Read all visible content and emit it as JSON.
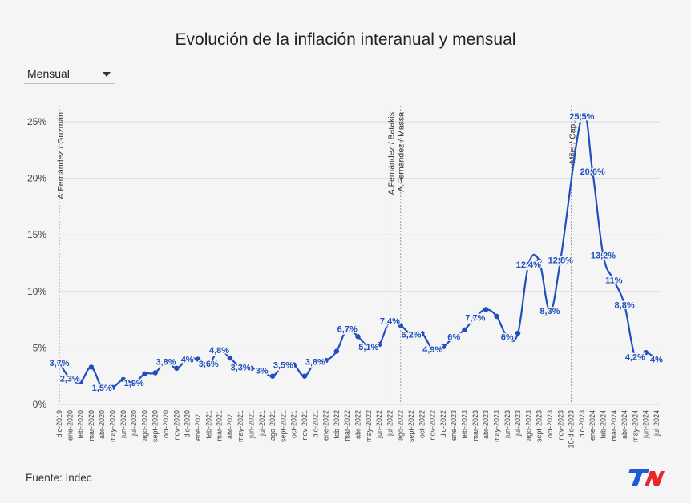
{
  "header": {
    "title": "Evolución de la inflación interanual y mensual"
  },
  "selector": {
    "value": "Mensual",
    "icon": "caret-down-icon"
  },
  "footer": {
    "source": "Fuente: Indec",
    "logo_text": "TN"
  },
  "colors": {
    "line": "#1f4fbf",
    "label": "#1f4fbf",
    "grid": "#dcdcdc",
    "brand_blue": "#1e5ad6",
    "brand_red": "#e8262b"
  },
  "chart_data": {
    "type": "line",
    "title": "Evolución de la inflación interanual y mensual",
    "xlabel": "",
    "ylabel": "",
    "ylim": [
      0,
      25
    ],
    "yticks": [
      0,
      5,
      10,
      15,
      20,
      25
    ],
    "ytick_labels": [
      "0%",
      "5%",
      "10%",
      "15%",
      "20%",
      "25%"
    ],
    "categories": [
      "dic-2019",
      "ene-2020",
      "feb-2020",
      "mar-2020",
      "abr-2020",
      "may-2020",
      "jun-2020",
      "jul-2020",
      "ago-2020",
      "sept-2020",
      "oct-2020",
      "nov-2020",
      "dic-2020",
      "ene-2021",
      "feb-2021",
      "mar-2021",
      "abr-2021",
      "may-2021",
      "jun-2021",
      "jul-2021",
      "ago-2021",
      "sept-2021",
      "oct-2021",
      "nov-2021",
      "dic-2021",
      "ene-2022",
      "feb-2022",
      "mar-2022",
      "abr-2022",
      "may-2022",
      "jun-2022",
      "jul-2022",
      "ago-2022",
      "sept-2022",
      "oct-2022",
      "nov-2022",
      "dic-2022",
      "ene-2023",
      "feb-2023",
      "mar-2023",
      "abr-2023",
      "may-2023",
      "jun-2023",
      "jul-2023",
      "ago-2023",
      "sept-2023",
      "oct-2023",
      "nov-2023",
      "10-dic-2023",
      "dic-2023",
      "ene-2024",
      "feb-2024",
      "mar-2024",
      "abr-2024",
      "may-2024",
      "jun-2024",
      "jul-2024"
    ],
    "series": [
      {
        "name": "Mensual",
        "values": [
          3.7,
          2.3,
          2.0,
          3.3,
          1.5,
          1.5,
          2.2,
          1.9,
          2.7,
          2.8,
          3.8,
          3.2,
          4.0,
          4.0,
          3.6,
          4.8,
          4.1,
          3.3,
          3.2,
          3.0,
          2.5,
          3.5,
          3.5,
          2.5,
          3.8,
          3.9,
          4.7,
          6.7,
          6.0,
          5.1,
          5.3,
          7.4,
          7.0,
          6.2,
          6.3,
          4.9,
          5.1,
          6.0,
          6.6,
          7.7,
          8.4,
          7.8,
          6.0,
          6.3,
          12.4,
          12.7,
          8.3,
          12.8,
          null,
          25.5,
          20.6,
          13.2,
          11.0,
          8.8,
          4.2,
          4.6,
          4.0
        ]
      }
    ],
    "data_labels": [
      {
        "label": "3,7%",
        "x": "dic-2019"
      },
      {
        "label": "2,3%",
        "x": "ene-2020"
      },
      {
        "label": "1,5%",
        "x": "abr-2020"
      },
      {
        "label": "1,9%",
        "x": "jul-2020"
      },
      {
        "label": "3,8%",
        "x": "oct-2020"
      },
      {
        "label": "4%",
        "x": "dic-2020"
      },
      {
        "label": "3,6%",
        "x": "feb-2021"
      },
      {
        "label": "4,8%",
        "x": "mar-2021"
      },
      {
        "label": "3,3%",
        "x": "may-2021"
      },
      {
        "label": "3%",
        "x": "jul-2021"
      },
      {
        "label": "3,5%",
        "x": "sept-2021"
      },
      {
        "label": "3,8%",
        "x": "dic-2021"
      },
      {
        "label": "6,7%",
        "x": "mar-2022"
      },
      {
        "label": "5,1%",
        "x": "may-2022"
      },
      {
        "label": "7,4%",
        "x": "jul-2022"
      },
      {
        "label": "6,2%",
        "x": "sept-2022"
      },
      {
        "label": "4,9%",
        "x": "nov-2022"
      },
      {
        "label": "6%",
        "x": "ene-2023"
      },
      {
        "label": "7,7%",
        "x": "mar-2023"
      },
      {
        "label": "6%",
        "x": "jun-2023"
      },
      {
        "label": "12,4%",
        "x": "ago-2023"
      },
      {
        "label": "8,3%",
        "x": "oct-2023"
      },
      {
        "label": "12,8%",
        "x": "nov-2023"
      },
      {
        "label": "25,5%",
        "x": "dic-2023"
      },
      {
        "label": "20,6%",
        "x": "ene-2024"
      },
      {
        "label": "13,2%",
        "x": "feb-2024"
      },
      {
        "label": "11%",
        "x": "mar-2024"
      },
      {
        "label": "8,8%",
        "x": "abr-2024"
      },
      {
        "label": "4,2%",
        "x": "may-2024"
      },
      {
        "label": "4%",
        "x": "jul-2024"
      }
    ],
    "annotations": [
      {
        "x": "dic-2019",
        "text": [
          "A.Fernández / Guzmán"
        ]
      },
      {
        "x": "jul-2022",
        "text": [
          "A.Fernández / Batakis",
          "A.Fernández / Massa"
        ]
      },
      {
        "x": "10-dic-2023",
        "text": [
          "Milei / Caputo"
        ]
      }
    ],
    "extra_vlines": [
      "ago-2022"
    ]
  }
}
